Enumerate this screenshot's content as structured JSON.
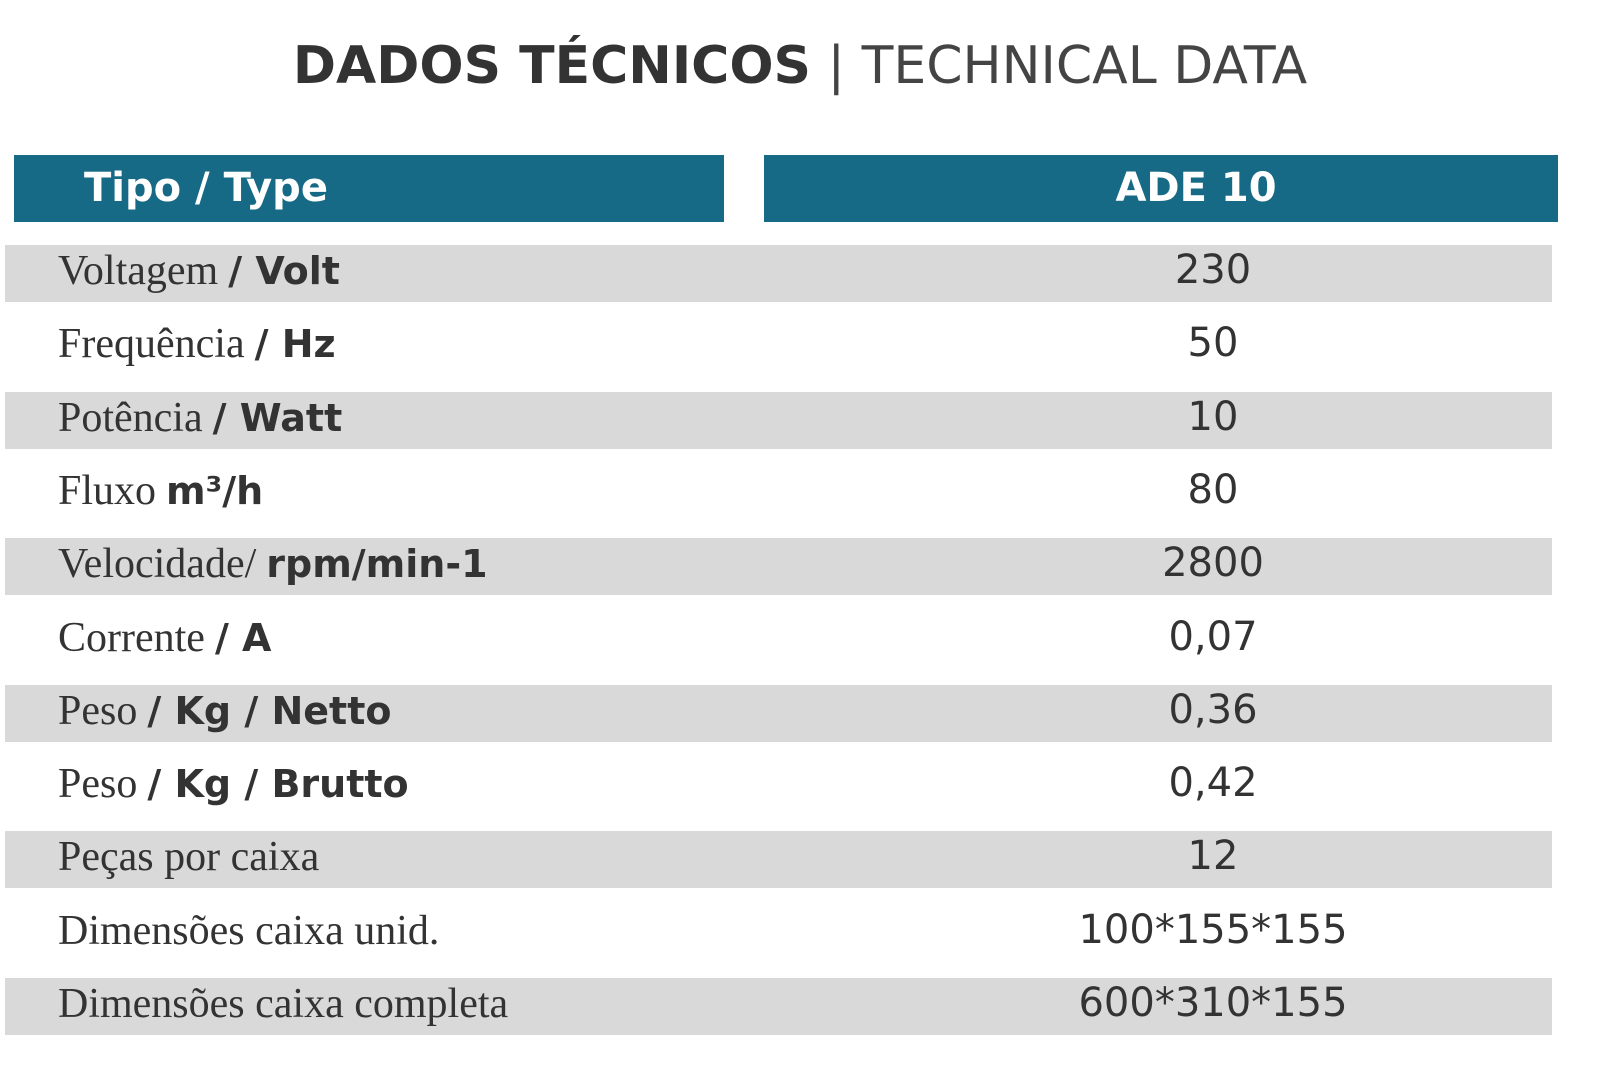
{
  "title": {
    "bold": "DADOS TÉCNICOS",
    "separator": "|",
    "light": "TECHNICAL DATA"
  },
  "table": {
    "header": [
      "Tipo / Type",
      "ADE 10"
    ],
    "rows": [
      {
        "label": [
          "Voltagem",
          "/ Volt"
        ],
        "value": "230"
      },
      {
        "label": [
          "Frequência",
          "/ Hz"
        ],
        "value": "50"
      },
      {
        "label": [
          "Potência",
          "/ Watt"
        ],
        "value": "10"
      },
      {
        "label": [
          "Fluxo",
          "m³/h"
        ],
        "value": "80"
      },
      {
        "label": [
          "Velocidade/",
          "rpm/min-1"
        ],
        "value": "2800"
      },
      {
        "label": [
          "Corrente",
          "/ A"
        ],
        "value": "0,07"
      },
      {
        "label": [
          "Peso",
          "/ Kg / Netto"
        ],
        "value": "0,36"
      },
      {
        "label": [
          "Peso",
          "/ Kg / Brutto"
        ],
        "value": "0,42"
      },
      {
        "label": [
          "Peças por caixa"
        ],
        "value": "12"
      },
      {
        "label": [
          "Dimensões caixa unid."
        ],
        "value": "100*155*155"
      },
      {
        "label": [
          "Dimensões caixa completa"
        ],
        "value": "600*310*155"
      }
    ]
  }
}
